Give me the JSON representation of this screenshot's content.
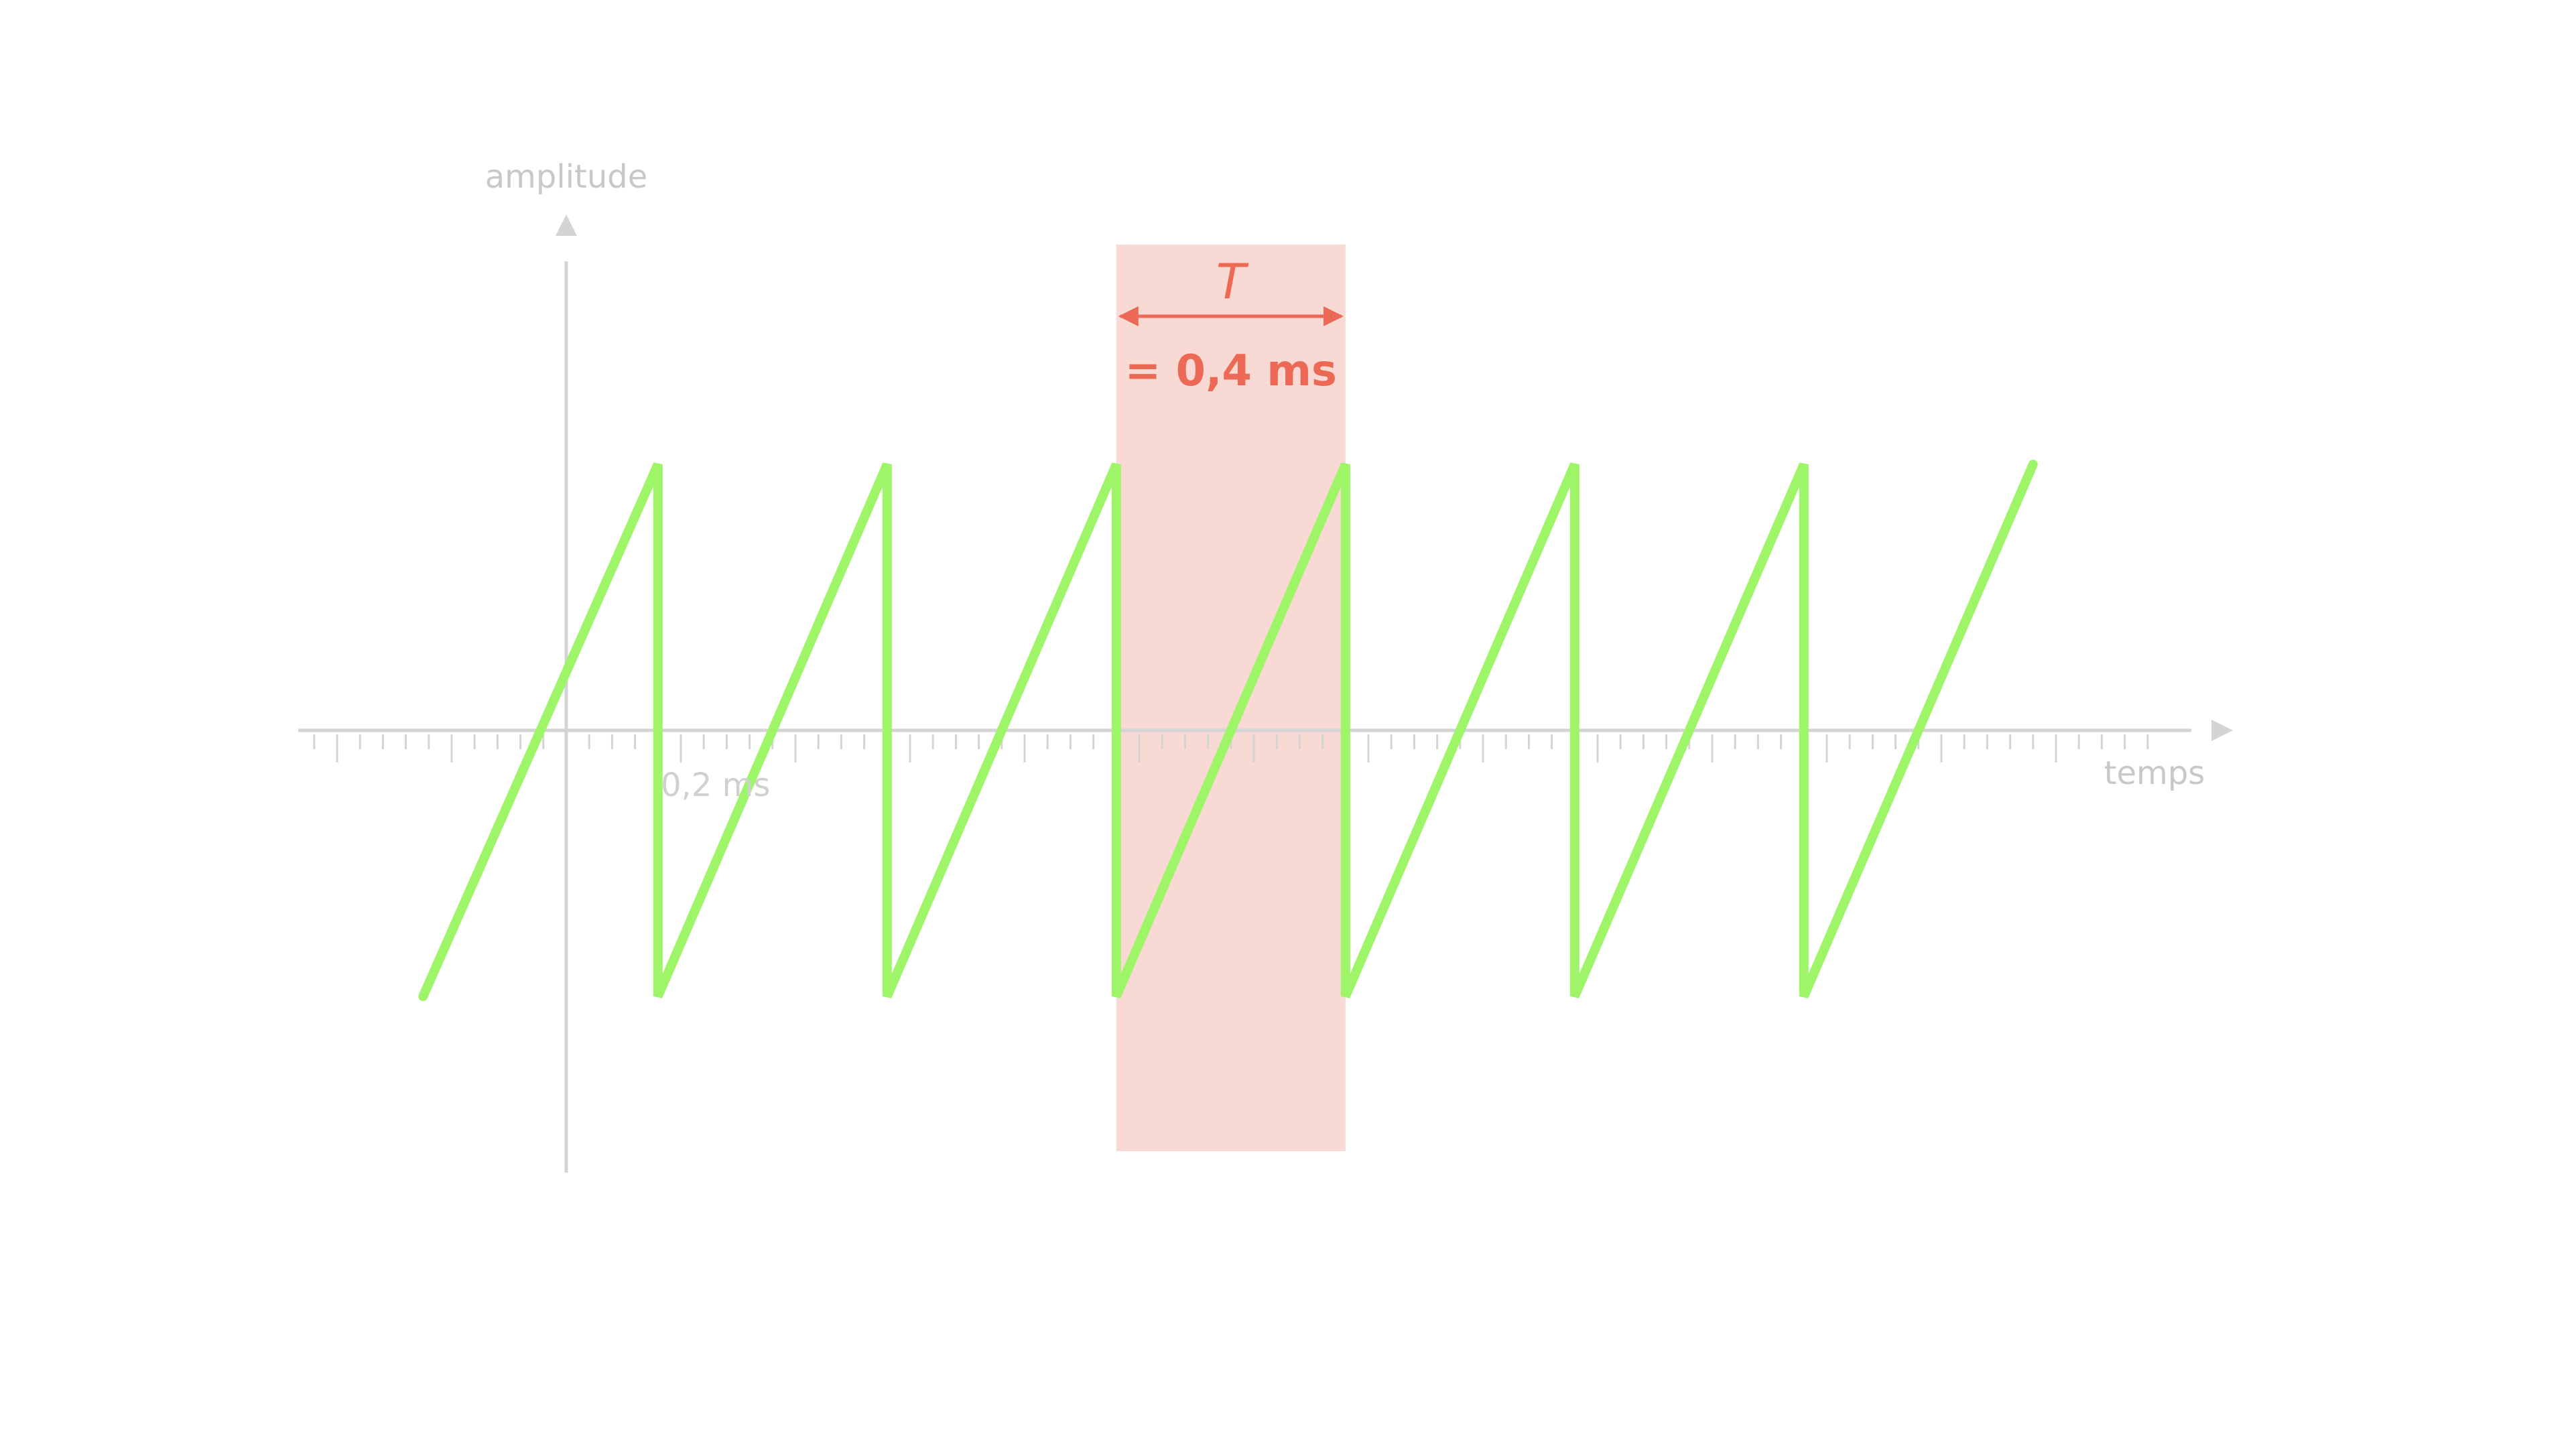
{
  "chart_data": {
    "type": "line",
    "title": "",
    "xlabel": "temps",
    "ylabel": "amplitude",
    "x_unit": "ms",
    "tick_label": "0,2 ms",
    "tick_label_value": 0.2,
    "xlim": [
      -0.6,
      2.7
    ],
    "ylim": [
      -1.7,
      1.7
    ],
    "minor_tick_step": 0.04,
    "major_tick_step": 0.2,
    "grid": false,
    "series": [
      {
        "color": "#9ef567",
        "x": [
          -0.25,
          0.16,
          0.16,
          0.56,
          0.56,
          0.96,
          0.96,
          1.36,
          1.36,
          1.76,
          1.76,
          2.16,
          2.16,
          2.56
        ],
        "y": [
          -1,
          1,
          -1,
          1,
          -1,
          1,
          -1,
          1,
          -1,
          1,
          -1,
          1,
          -1,
          1
        ]
      }
    ],
    "annotations": [
      {
        "type": "period-highlight",
        "x_start": 0.96,
        "x_end": 1.36,
        "fill": "#f8d9d3",
        "accent": "#ec6a55",
        "symbol": "T",
        "value_text": "= 0,4 ms"
      }
    ]
  },
  "colors": {
    "axis": "#d4d4d4",
    "signal": "#9ef567",
    "highlight": "#f8d9d3",
    "annotation": "#ec6a55"
  }
}
